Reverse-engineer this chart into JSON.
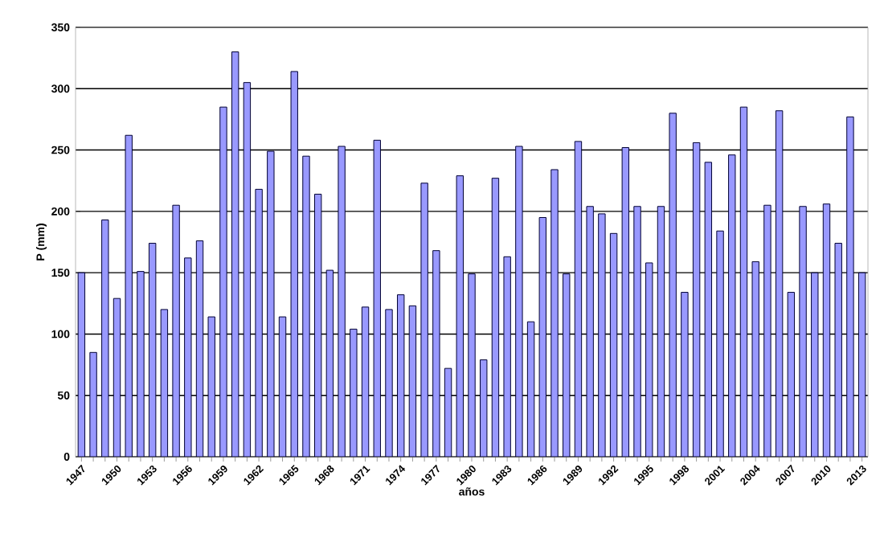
{
  "chart_data": {
    "type": "bar",
    "xlabel": "años",
    "ylabel": "P (mm)",
    "categories": [
      "1947",
      null,
      null,
      "1950",
      null,
      null,
      "1953",
      null,
      null,
      "1956",
      null,
      null,
      "1959",
      null,
      null,
      "1962",
      null,
      null,
      "1965",
      null,
      null,
      "1968",
      null,
      null,
      "1971",
      null,
      null,
      "1974",
      null,
      null,
      "1977",
      null,
      null,
      "1980",
      null,
      null,
      "1983",
      null,
      null,
      "1986",
      null,
      null,
      "1989",
      null,
      null,
      "1992",
      null,
      null,
      "1995",
      null,
      null,
      "1998",
      null,
      null,
      "2001",
      null,
      null,
      "2004",
      null,
      null,
      "2007",
      null,
      null,
      "2010",
      null,
      null,
      "2013"
    ],
    "values": [
      150,
      85,
      193,
      129,
      262,
      151,
      174,
      120,
      205,
      162,
      176,
      114,
      285,
      330,
      305,
      218,
      249,
      114,
      314,
      245,
      214,
      152,
      253,
      104,
      122,
      258,
      120,
      132,
      123,
      223,
      168,
      72,
      229,
      149,
      79,
      227,
      163,
      253,
      110,
      195,
      234,
      149,
      257,
      204,
      198,
      182,
      252,
      204,
      158,
      204,
      280,
      134,
      256,
      240,
      184,
      246,
      285,
      159,
      205,
      282,
      134,
      204,
      150,
      206,
      174,
      277,
      150
    ],
    "color": "#9999ff",
    "ylim": [
      0,
      350
    ],
    "yticks": [
      0,
      50,
      100,
      150,
      200,
      250,
      300,
      350
    ],
    "grid": "y"
  }
}
